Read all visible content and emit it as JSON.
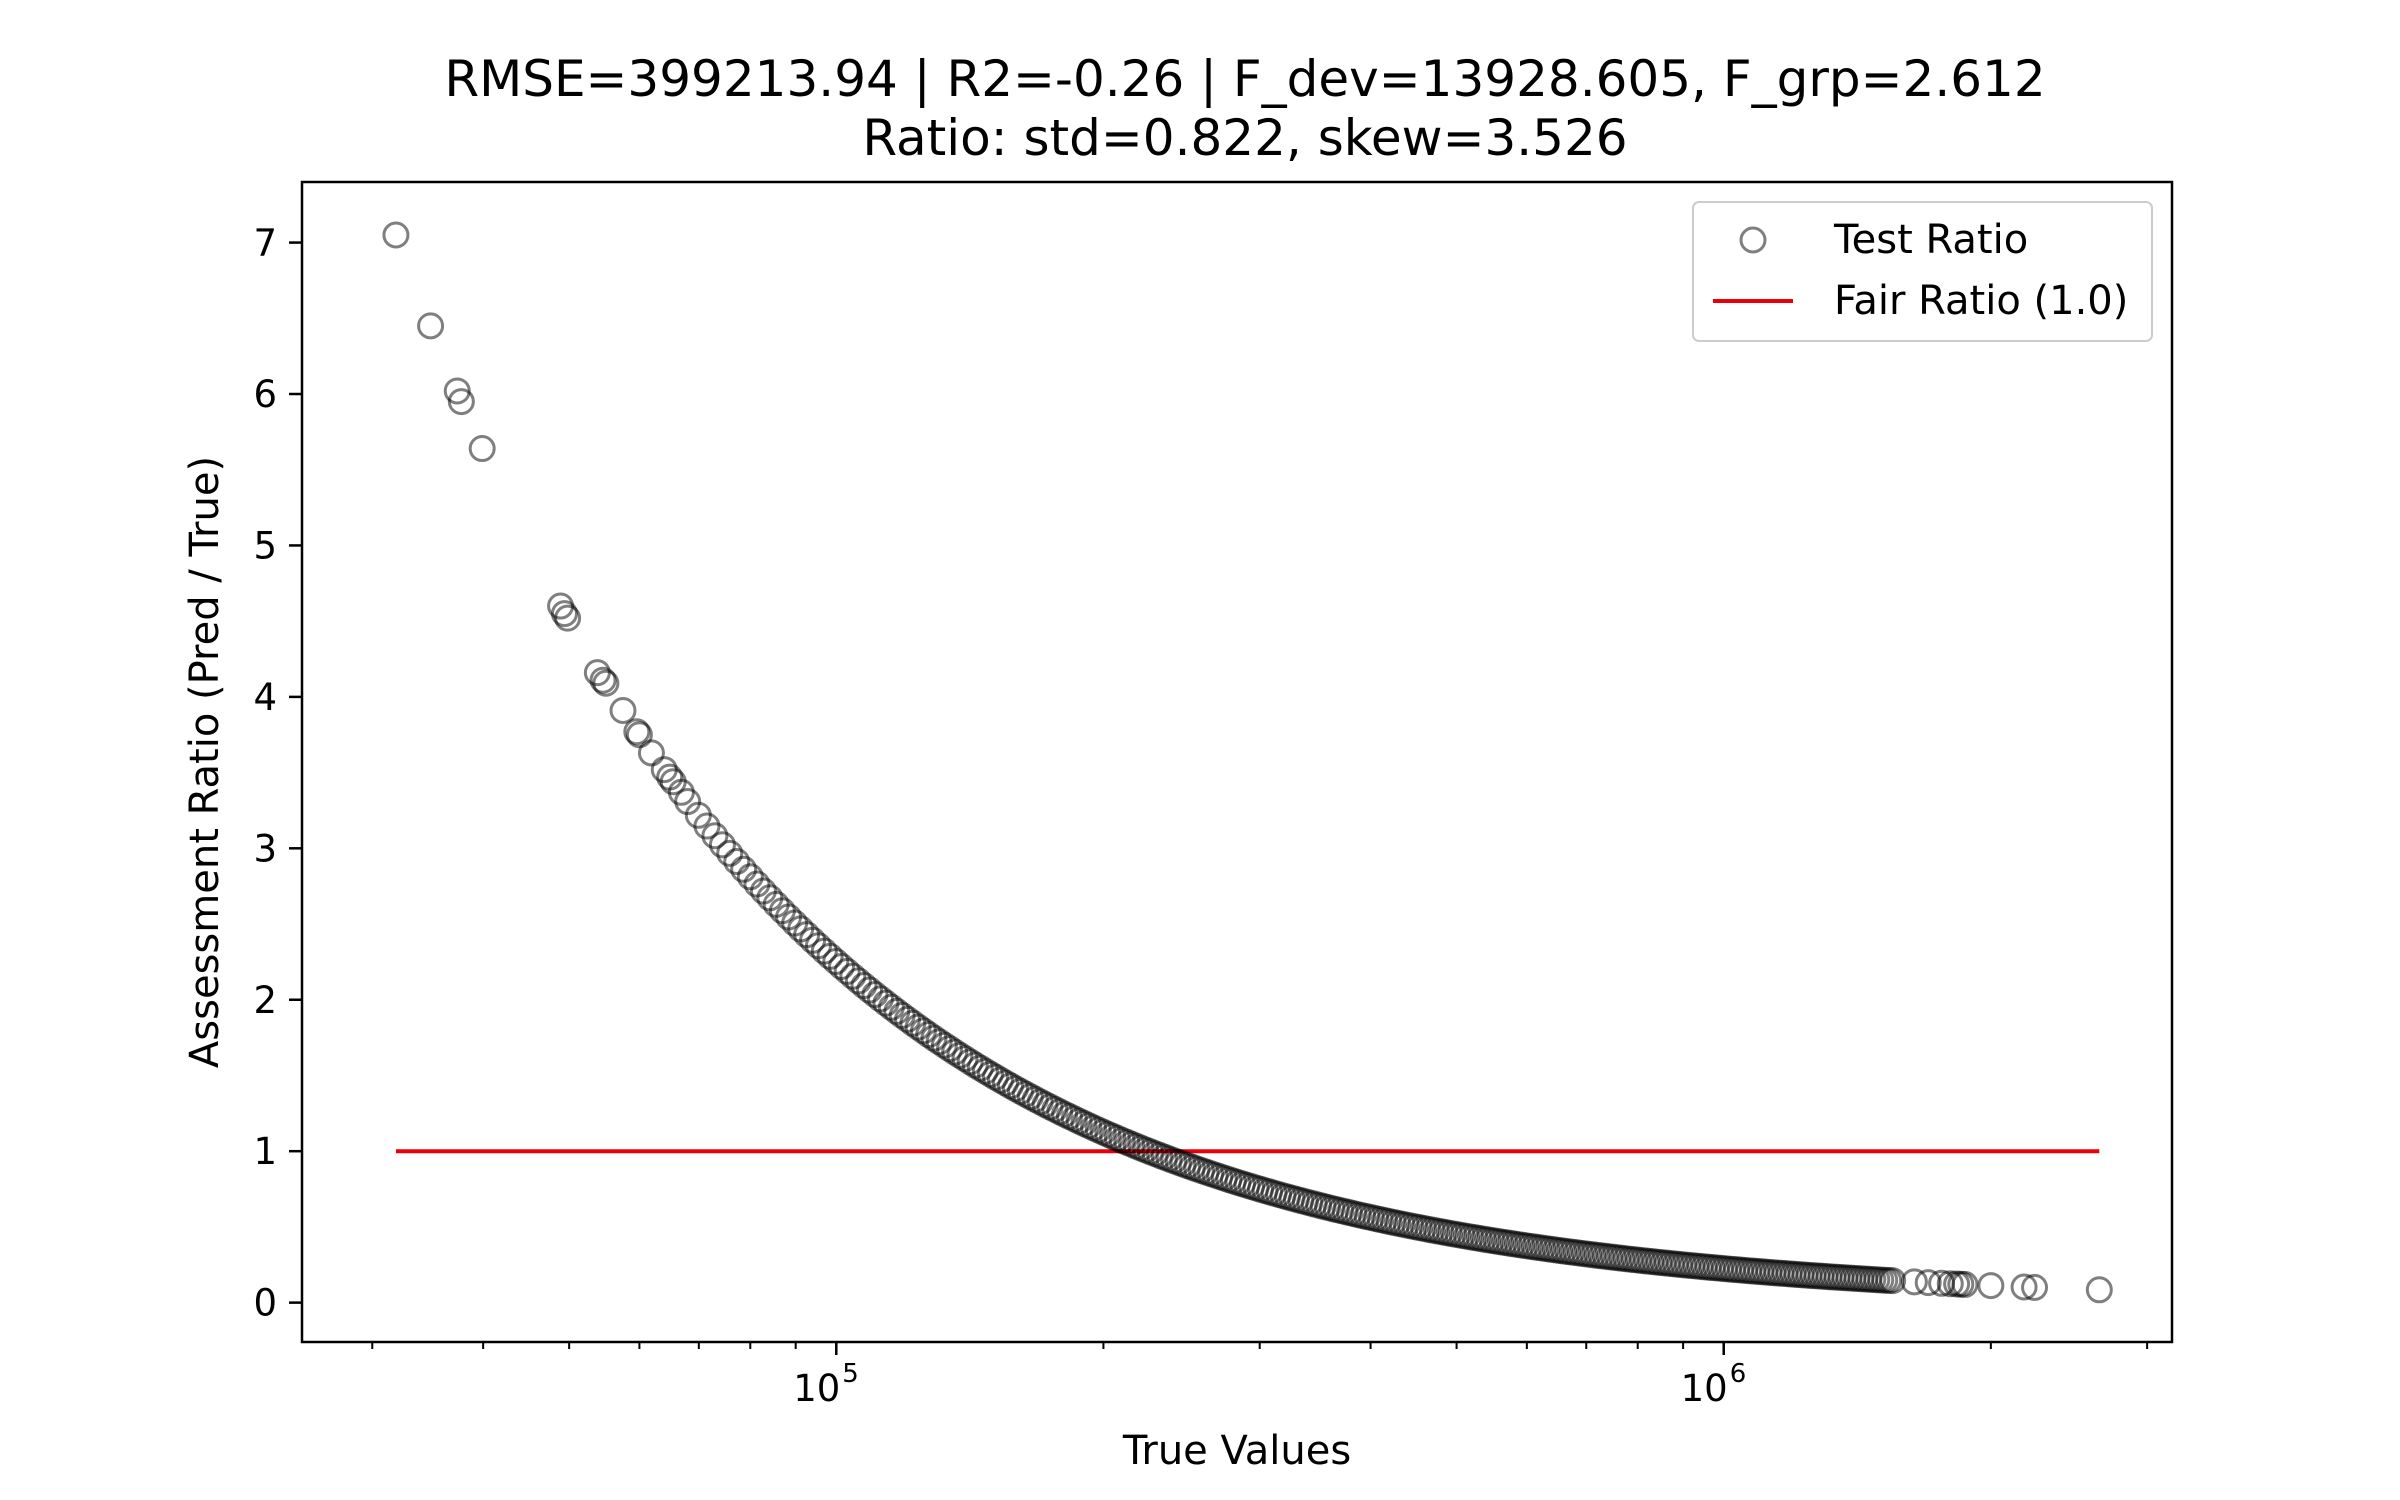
{
  "chart_data": {
    "type": "scatter",
    "title_line1": "RMSE=399213.94 | R2=-0.26 | F_dev=13928.605, F_grp=2.612",
    "title_line2": "Ratio: std=0.822, skew=3.526",
    "xlabel": "True Values",
    "ylabel": "Assessment Ratio (Pred / True)",
    "xscale": "log",
    "xlim": [
      25000,
      3200000
    ],
    "ylim": [
      -0.26,
      7.4
    ],
    "grid": false,
    "legend_position": "top-right",
    "x_ticks": [
      {
        "value": 100000,
        "base": "10",
        "exp": "5"
      },
      {
        "value": 1000000,
        "base": "10",
        "exp": "6"
      }
    ],
    "y_ticks": [
      0,
      1,
      2,
      3,
      4,
      5,
      6,
      7
    ],
    "series": [
      {
        "name": "Test Ratio",
        "kind": "scatter",
        "marker": "hollow-circle",
        "color": "#000000",
        "opacity": 0.5,
        "predicted_value": 225000,
        "points": [
          {
            "x": 31900,
            "y": 7.05
          },
          {
            "x": 34900,
            "y": 6.45
          },
          {
            "x": 37400,
            "y": 6.02
          },
          {
            "x": 37800,
            "y": 5.95
          },
          {
            "x": 39900,
            "y": 5.64
          },
          {
            "x": 48900,
            "y": 4.6
          },
          {
            "x": 49400,
            "y": 4.55
          },
          {
            "x": 49800,
            "y": 4.52
          },
          {
            "x": 53800,
            "y": 4.16
          },
          {
            "x": 54600,
            "y": 4.11
          },
          {
            "x": 55000,
            "y": 4.09
          },
          {
            "x": 57500,
            "y": 3.91
          },
          {
            "x": 59600,
            "y": 3.77
          },
          {
            "x": 60000,
            "y": 3.75
          },
          {
            "x": 61900,
            "y": 3.63
          },
          {
            "x": 64000,
            "y": 3.52
          },
          {
            "x": 64900,
            "y": 3.47
          },
          {
            "x": 65500,
            "y": 3.44
          },
          {
            "x": 66900,
            "y": 3.37
          }
        ],
        "curve_from": 68000,
        "curve_to": 1550000,
        "curve_points": 260,
        "tail_points": [
          1640000,
          1700000,
          1760000,
          1800000,
          1830000,
          1850000,
          1870000,
          2000000,
          2180000,
          2240000,
          2650000
        ]
      },
      {
        "name": "Fair Ratio (1.0)",
        "kind": "line",
        "color": "#e8000b",
        "y": 1.0,
        "x_from": 31900,
        "x_to": 2650000
      }
    ]
  }
}
